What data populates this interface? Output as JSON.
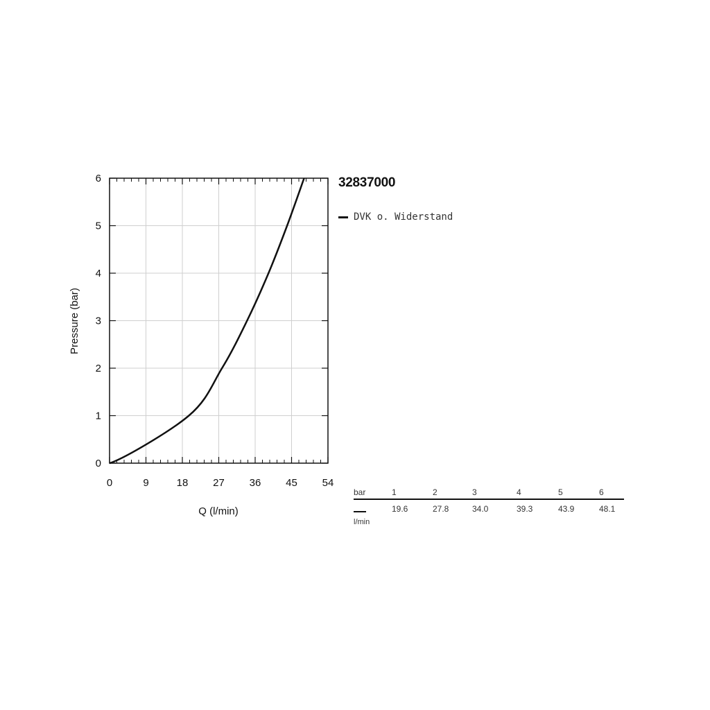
{
  "chart_data": {
    "type": "line",
    "title": "32837000",
    "xlabel": "Q (l/min)",
    "ylabel": "Pressure (bar)",
    "xlim": [
      0,
      54
    ],
    "ylim": [
      0,
      6
    ],
    "xticks": [
      0,
      9,
      18,
      27,
      36,
      45,
      54
    ],
    "yticks": [
      0,
      1,
      2,
      3,
      4,
      5,
      6
    ],
    "grid": true,
    "legend_position": "right",
    "series": [
      {
        "name": "DVK o. Widerstand",
        "color": "#111111",
        "x": [
          0,
          19.6,
          27.8,
          34.0,
          39.3,
          43.9,
          48.1
        ],
        "y": [
          0,
          1,
          2,
          3,
          4,
          5,
          6
        ]
      }
    ]
  },
  "table": {
    "header_label": "bar",
    "unit_label": "l/min",
    "pressures": [
      "1",
      "2",
      "3",
      "4",
      "5",
      "6"
    ],
    "flows": [
      "19.6",
      "27.8",
      "34.0",
      "39.3",
      "43.9",
      "48.1"
    ]
  }
}
